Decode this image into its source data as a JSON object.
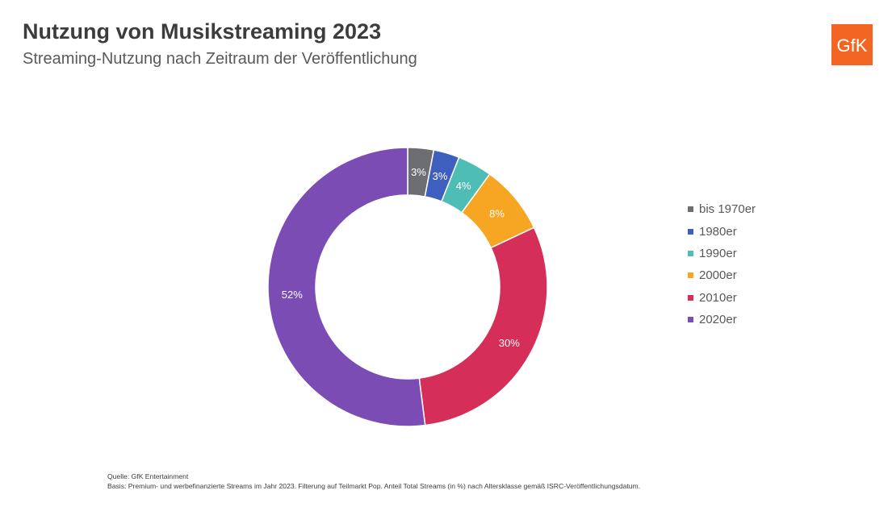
{
  "header": {
    "title": "Nutzung von Musikstreaming 2023",
    "subtitle": "Streaming-Nutzung nach Zeitraum der Veröffentlichung"
  },
  "logo": {
    "text": "GfK",
    "color": "#f26522"
  },
  "chart_data": {
    "type": "pie",
    "donut": true,
    "title": "Nutzung von Musikstreaming 2023",
    "subtitle": "Streaming-Nutzung nach Zeitraum der Veröffentlichung",
    "legend_position": "right",
    "slices": [
      {
        "name": "bis 1970er",
        "value": 3,
        "label": "3%",
        "color": "#6d6e71"
      },
      {
        "name": "1980er",
        "value": 3,
        "label": "3%",
        "color": "#3f5fbf"
      },
      {
        "name": "1990er",
        "value": 4,
        "label": "4%",
        "color": "#4dbdb5"
      },
      {
        "name": "2000er",
        "value": 8,
        "label": "8%",
        "color": "#f6a623"
      },
      {
        "name": "2010er",
        "value": 30,
        "label": "30%",
        "color": "#d52e58"
      },
      {
        "name": "2020er",
        "value": 52,
        "label": "52%",
        "color": "#7b4cb4"
      }
    ]
  },
  "footer": {
    "source": "Quelle: GfK Entertainment",
    "basis": "Basis: Premium- und werbefinanzierte Streams im Jahr 2023. Filterung auf Teilmarkt Pop. Anteil Total Streams (in %) nach Altersklasse gemäß ISRC-Veröffentlichungsdatum."
  }
}
